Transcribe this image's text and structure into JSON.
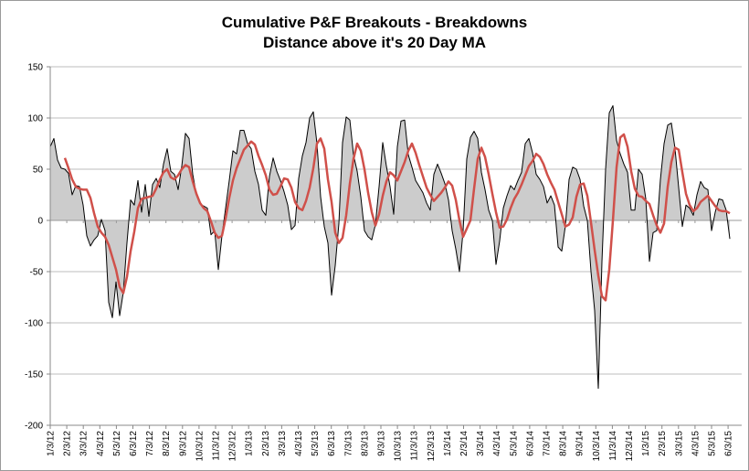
{
  "chart_data": {
    "type": "area",
    "title": [
      "Cumulative P&F Breakouts - Breakdowns",
      "Distance above it's 20 Day MA"
    ],
    "xlabel": "",
    "ylabel": "",
    "ylim": [
      -200,
      150
    ],
    "yticks": [
      "150",
      "100",
      "50",
      "0",
      "-50",
      "-100",
      "-150",
      "-200"
    ],
    "ytick_values": [
      150,
      100,
      50,
      0,
      -50,
      -100,
      -150,
      -200
    ],
    "xticks": [
      "1/3/12",
      "2/3/12",
      "3/3/12",
      "4/3/12",
      "5/3/12",
      "6/3/12",
      "7/3/12",
      "8/3/12",
      "9/3/12",
      "10/3/12",
      "11/3/12",
      "12/3/12",
      "1/3/13",
      "2/3/13",
      "3/3/13",
      "4/3/13",
      "5/3/13",
      "6/3/13",
      "7/3/13",
      "8/3/13",
      "9/3/13",
      "10/3/13",
      "11/3/13",
      "12/3/13",
      "1/3/14",
      "2/3/14",
      "3/3/14",
      "4/3/14",
      "5/3/14",
      "6/3/14",
      "7/3/14",
      "8/3/14",
      "9/3/14",
      "10/3/14",
      "11/3/14",
      "12/3/14",
      "1/3/15",
      "2/3/15",
      "3/3/15",
      "4/3/15",
      "5/3/15",
      "6/3/15"
    ],
    "x_unit": "months since 1/3/12",
    "grid": true,
    "series": [
      {
        "name": "Cumulative P&F Breakouts - Breakdowns",
        "style": "black line with gray fill to zero",
        "color": "#000000",
        "fill": "#cccccc",
        "x_start": 0,
        "x_step": 0.221,
        "values": [
          72,
          80,
          59,
          51,
          50,
          46,
          25,
          34,
          33,
          15,
          -15,
          -25,
          -19,
          -15,
          1,
          -10,
          -80,
          -95,
          -60,
          -93,
          -70,
          -22,
          20,
          15,
          39,
          8,
          35,
          4,
          35,
          41,
          32,
          55,
          70,
          48,
          45,
          30,
          53,
          85,
          80,
          45,
          25,
          16,
          14,
          12,
          -14,
          -10,
          -48,
          -15,
          12,
          39,
          68,
          65,
          88,
          88,
          75,
          70,
          48,
          35,
          10,
          5,
          43,
          61,
          48,
          39,
          28,
          15,
          -9,
          -5,
          41,
          63,
          76,
          100,
          106,
          75,
          23,
          -6,
          -22,
          -73,
          -44,
          -3,
          76,
          101,
          98,
          64,
          48,
          23,
          -10,
          -16,
          -19,
          -4,
          33,
          76,
          53,
          33,
          6,
          72,
          97,
          98,
          64,
          52,
          39,
          33,
          27,
          17,
          10,
          45,
          55,
          46,
          36,
          20,
          -10,
          -28,
          -50,
          -10,
          60,
          81,
          87,
          80,
          47,
          30,
          10,
          0,
          -43,
          -20,
          12,
          24,
          34,
          30,
          39,
          47,
          75,
          80,
          66,
          45,
          40,
          33,
          17,
          24,
          15,
          -26,
          -30,
          -5,
          40,
          52,
          50,
          40,
          14,
          0,
          -50,
          -88,
          -164,
          -40,
          50,
          105,
          112,
          78,
          65,
          55,
          47,
          10,
          10,
          50,
          45,
          21,
          -40,
          -12,
          -10,
          40,
          75,
          93,
          95,
          70,
          32,
          -6,
          15,
          12,
          5,
          25,
          38,
          32,
          30,
          -10,
          8,
          21,
          20,
          10,
          -18
        ]
      },
      {
        "name": "20 Day MA",
        "style": "red line",
        "color": "#d0504a",
        "x_start": 0.884,
        "x_step": 0.221,
        "values": [
          61,
          51,
          40,
          33,
          31,
          30,
          30,
          22,
          7,
          -6,
          -12,
          -16,
          -24,
          -36,
          -48,
          -65,
          -71,
          -55,
          -30,
          -11,
          12,
          21,
          22,
          23,
          24,
          31,
          40,
          47,
          50,
          42,
          40,
          44,
          50,
          54,
          52,
          38,
          26,
          17,
          12,
          9,
          -1,
          -12,
          -17,
          -15,
          2,
          22,
          39,
          51,
          60,
          69,
          73,
          77,
          74,
          63,
          54,
          44,
          30,
          25,
          26,
          33,
          41,
          40,
          32,
          18,
          12,
          10,
          19,
          32,
          51,
          75,
          80,
          70,
          40,
          18,
          -12,
          -22,
          -17,
          5,
          36,
          60,
          75,
          68,
          50,
          27,
          8,
          -5,
          6,
          24,
          38,
          47,
          44,
          39,
          48,
          57,
          68,
          75,
          66,
          54,
          43,
          32,
          25,
          19,
          23,
          27,
          32,
          38,
          34,
          20,
          0,
          -16,
          -8,
          0,
          31,
          60,
          71,
          62,
          45,
          26,
          8,
          -7,
          -6,
          1,
          12,
          21,
          27,
          35,
          44,
          53,
          58,
          65,
          62,
          55,
          45,
          37,
          30,
          18,
          6,
          -6,
          -4,
          3,
          23,
          35,
          36,
          24,
          -2,
          -29,
          -54,
          -74,
          -78,
          -48,
          0,
          52,
          81,
          84,
          72,
          48,
          31,
          24,
          23,
          19,
          16,
          5,
          -5,
          -12,
          -3,
          33,
          57,
          71,
          69,
          47,
          26,
          15,
          9,
          12,
          18,
          21,
          24,
          19,
          14,
          10,
          9,
          9,
          7
        ]
      }
    ]
  }
}
